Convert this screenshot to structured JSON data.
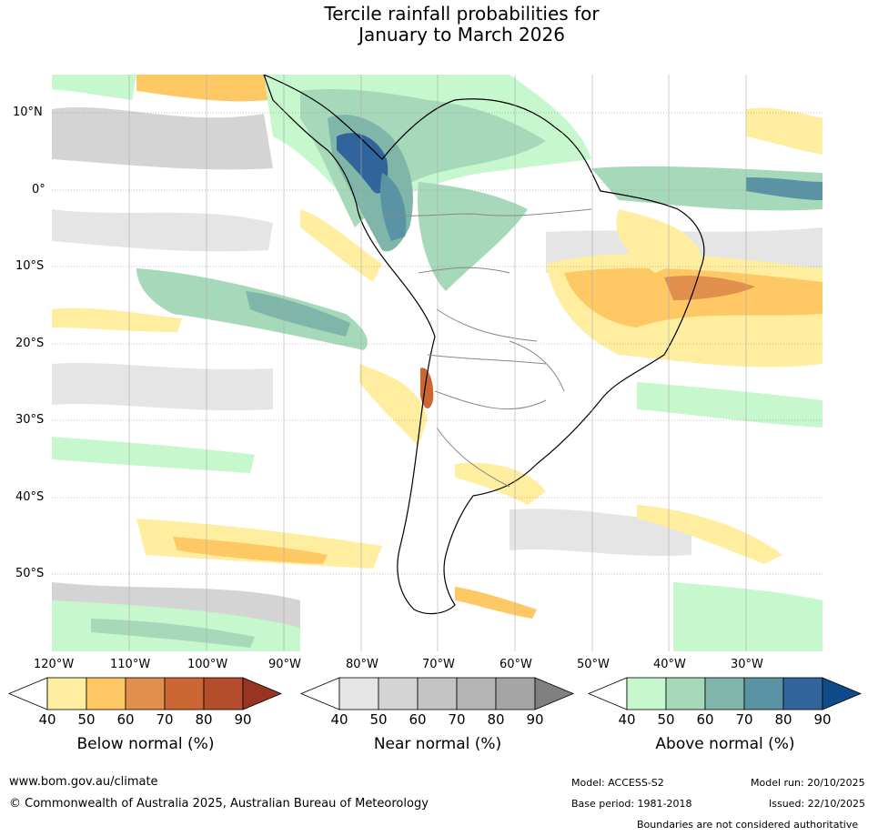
{
  "title": {
    "line1": "Tercile rainfall probabilities for",
    "line2": "January to March 2026"
  },
  "map": {
    "lat_labels": [
      "10°N",
      "0°",
      "10°S",
      "20°S",
      "30°S",
      "40°S",
      "50°S"
    ],
    "lon_labels": [
      "120°W",
      "110°W",
      "100°W",
      "90°W",
      "80°W",
      "70°W",
      "60°W",
      "50°W",
      "40°W",
      "30°W"
    ],
    "colors": {
      "below": [
        "#ffeda0",
        "#fec965",
        "#e0904c",
        "#cc6633",
        "#b34d2b",
        "#993322"
      ],
      "near": [
        "#e5e5e5",
        "#d4d4d4",
        "#c4c4c4",
        "#b5b5b5",
        "#a5a5a5",
        "#808080"
      ],
      "above": [
        "#c7f7cd",
        "#a6d9b9",
        "#7fb6a9",
        "#5a93a3",
        "#31649b",
        "#104b89"
      ]
    }
  },
  "colorbars": [
    {
      "name": "below",
      "label": "Below normal (%)",
      "ticks": [
        "40",
        "50",
        "60",
        "70",
        "80",
        "90"
      ]
    },
    {
      "name": "near",
      "label": "Near normal (%)",
      "ticks": [
        "40",
        "50",
        "60",
        "70",
        "80",
        "90"
      ]
    },
    {
      "name": "above",
      "label": "Above normal (%)",
      "ticks": [
        "40",
        "50",
        "60",
        "70",
        "80",
        "90"
      ]
    }
  ],
  "footer": {
    "url": "www.bom.gov.au/climate",
    "copyright": "© Commonwealth of Australia 2025, Australian Bureau of Meteorology",
    "model": "Model: ACCESS-S2",
    "model_run": "Model run: 20/10/2025",
    "base_period": "Base period: 1981-2018",
    "issued": "Issued: 22/10/2025",
    "disclaimer": "Boundaries are not considered authoritative"
  }
}
